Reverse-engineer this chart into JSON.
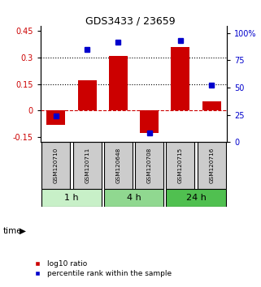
{
  "title": "GDS3433 / 23659",
  "samples": [
    "GSM120710",
    "GSM120711",
    "GSM120648",
    "GSM120708",
    "GSM120715",
    "GSM120716"
  ],
  "log10_ratio": [
    -0.08,
    0.17,
    0.31,
    -0.13,
    0.36,
    0.05
  ],
  "percentile_rank": [
    24,
    85,
    92,
    8,
    93,
    52
  ],
  "groups": [
    {
      "label": "1 h",
      "samples": [
        0,
        1
      ],
      "color": "#c8f0c8"
    },
    {
      "label": "4 h",
      "samples": [
        2,
        3
      ],
      "color": "#90d890"
    },
    {
      "label": "24 h",
      "samples": [
        4,
        5
      ],
      "color": "#50c050"
    }
  ],
  "bar_color": "#cc0000",
  "dot_color": "#0000cc",
  "ylim_left": [
    -0.18,
    0.48
  ],
  "ylim_right": [
    0,
    106.67
  ],
  "yticks_left": [
    -0.15,
    0.0,
    0.15,
    0.3,
    0.45
  ],
  "yticks_right": [
    0,
    25,
    50,
    75,
    100
  ],
  "ytick_labels_left": [
    "-0.15",
    "0",
    "0.15",
    "0.3",
    "0.45"
  ],
  "ytick_labels_right": [
    "0",
    "25",
    "50",
    "75",
    "100%"
  ],
  "hlines": [
    0.15,
    0.3
  ],
  "zero_line": 0.0,
  "bg_color": "#ffffff",
  "sample_box_color": "#cccccc",
  "bar_width": 0.6,
  "dot_size": 5
}
